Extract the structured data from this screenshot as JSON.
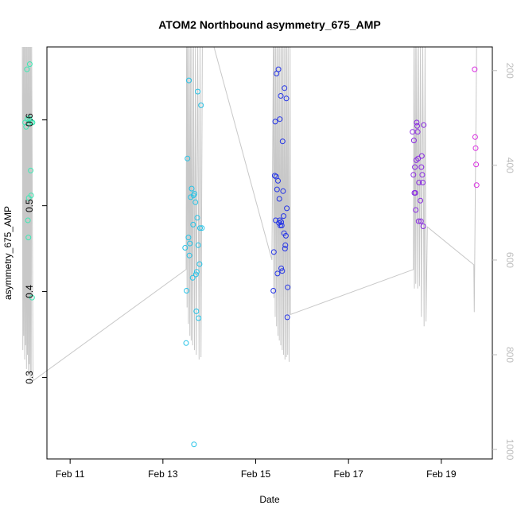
{
  "chart_data": {
    "type": "scatter",
    "title": "ATOM2 Northbound asymmetry_675_AMP",
    "xlabel": "Date",
    "ylabel": "asymmetry_675_AMP",
    "x_ticks": [
      "Feb 11",
      "Feb 13",
      "Feb 15",
      "Feb 17",
      "Feb 19"
    ],
    "xlim_days": [
      10.5,
      20.1
    ],
    "ylim": [
      0.205,
      0.685
    ],
    "y_ticks": [
      0.3,
      0.4,
      0.5,
      0.6
    ],
    "y2_ticks": [
      200,
      400,
      600,
      800,
      1000
    ],
    "y2lim": [
      1020,
      150
    ],
    "grid": false,
    "colors": {
      "group1": "#3ee8b4",
      "group2": "#25c2e6",
      "group3": "#2535e6",
      "group4": "#8a2be2",
      "group5": "#d92ee0",
      "depth_line": "#c8c8c8"
    },
    "points": [
      {
        "g": "group1",
        "x": 10.03,
        "y": 0.597
      },
      {
        "g": "group1",
        "x": 10.05,
        "y": 0.592
      },
      {
        "g": "group1",
        "x": 10.07,
        "y": 0.659
      },
      {
        "g": "group1",
        "x": 10.08,
        "y": 0.601
      },
      {
        "g": "group1",
        "x": 10.09,
        "y": 0.483
      },
      {
        "g": "group1",
        "x": 10.1,
        "y": 0.463
      },
      {
        "g": "group1",
        "x": 10.11,
        "y": 0.509
      },
      {
        "g": "group1",
        "x": 10.12,
        "y": 0.602
      },
      {
        "g": "group1",
        "x": 10.13,
        "y": 0.665
      },
      {
        "g": "group1",
        "x": 10.14,
        "y": 0.599
      },
      {
        "g": "group1",
        "x": 10.15,
        "y": 0.541
      },
      {
        "g": "group1",
        "x": 10.16,
        "y": 0.512
      },
      {
        "g": "group1",
        "x": 10.17,
        "y": 0.597
      },
      {
        "g": "group1",
        "x": 10.18,
        "y": 0.393
      },
      {
        "g": "group1",
        "x": 10.19,
        "y": 0.597
      },
      {
        "g": "group2",
        "x": 13.48,
        "y": 0.451
      },
      {
        "g": "group2",
        "x": 13.5,
        "y": 0.34
      },
      {
        "g": "group2",
        "x": 13.51,
        "y": 0.401
      },
      {
        "g": "group2",
        "x": 13.53,
        "y": 0.555
      },
      {
        "g": "group2",
        "x": 13.55,
        "y": 0.463
      },
      {
        "g": "group2",
        "x": 13.56,
        "y": 0.646
      },
      {
        "g": "group2",
        "x": 13.57,
        "y": 0.442
      },
      {
        "g": "group2",
        "x": 13.58,
        "y": 0.456
      },
      {
        "g": "group2",
        "x": 13.6,
        "y": 0.51
      },
      {
        "g": "group2",
        "x": 13.62,
        "y": 0.52
      },
      {
        "g": "group2",
        "x": 13.64,
        "y": 0.416
      },
      {
        "g": "group2",
        "x": 13.65,
        "y": 0.478
      },
      {
        "g": "group2",
        "x": 13.66,
        "y": 0.512
      },
      {
        "g": "group2",
        "x": 13.67,
        "y": 0.222
      },
      {
        "g": "group2",
        "x": 13.68,
        "y": 0.514
      },
      {
        "g": "group2",
        "x": 13.7,
        "y": 0.504
      },
      {
        "g": "group2",
        "x": 13.71,
        "y": 0.42
      },
      {
        "g": "group2",
        "x": 13.72,
        "y": 0.377
      },
      {
        "g": "group2",
        "x": 13.73,
        "y": 0.423
      },
      {
        "g": "group2",
        "x": 13.74,
        "y": 0.486
      },
      {
        "g": "group2",
        "x": 13.75,
        "y": 0.633
      },
      {
        "g": "group2",
        "x": 13.76,
        "y": 0.454
      },
      {
        "g": "group2",
        "x": 13.77,
        "y": 0.369
      },
      {
        "g": "group2",
        "x": 13.79,
        "y": 0.432
      },
      {
        "g": "group2",
        "x": 13.8,
        "y": 0.474
      },
      {
        "g": "group2",
        "x": 13.82,
        "y": 0.617
      },
      {
        "g": "group2",
        "x": 13.84,
        "y": 0.474
      },
      {
        "g": "group3",
        "x": 15.38,
        "y": 0.401
      },
      {
        "g": "group3",
        "x": 15.39,
        "y": 0.446
      },
      {
        "g": "group3",
        "x": 15.41,
        "y": 0.535
      },
      {
        "g": "group3",
        "x": 15.42,
        "y": 0.598
      },
      {
        "g": "group3",
        "x": 15.43,
        "y": 0.483
      },
      {
        "g": "group3",
        "x": 15.44,
        "y": 0.534
      },
      {
        "g": "group3",
        "x": 15.45,
        "y": 0.654
      },
      {
        "g": "group3",
        "x": 15.46,
        "y": 0.519
      },
      {
        "g": "group3",
        "x": 15.47,
        "y": 0.421
      },
      {
        "g": "group3",
        "x": 15.48,
        "y": 0.529
      },
      {
        "g": "group3",
        "x": 15.49,
        "y": 0.659
      },
      {
        "g": "group3",
        "x": 15.5,
        "y": 0.48
      },
      {
        "g": "group3",
        "x": 15.51,
        "y": 0.508
      },
      {
        "g": "group3",
        "x": 15.52,
        "y": 0.601
      },
      {
        "g": "group3",
        "x": 15.53,
        "y": 0.477
      },
      {
        "g": "group3",
        "x": 15.54,
        "y": 0.628
      },
      {
        "g": "group3",
        "x": 15.55,
        "y": 0.427
      },
      {
        "g": "group3",
        "x": 15.56,
        "y": 0.477
      },
      {
        "g": "group3",
        "x": 15.57,
        "y": 0.424
      },
      {
        "g": "group3",
        "x": 15.58,
        "y": 0.575
      },
      {
        "g": "group3",
        "x": 15.59,
        "y": 0.517
      },
      {
        "g": "group3",
        "x": 15.6,
        "y": 0.488
      },
      {
        "g": "group3",
        "x": 15.61,
        "y": 0.468
      },
      {
        "g": "group3",
        "x": 15.62,
        "y": 0.637
      },
      {
        "g": "group3",
        "x": 15.63,
        "y": 0.45
      },
      {
        "g": "group3",
        "x": 15.64,
        "y": 0.454
      },
      {
        "g": "group3",
        "x": 15.65,
        "y": 0.465
      },
      {
        "g": "group3",
        "x": 15.66,
        "y": 0.625
      },
      {
        "g": "group3",
        "x": 15.67,
        "y": 0.497
      },
      {
        "g": "group3",
        "x": 15.68,
        "y": 0.37
      },
      {
        "g": "group3",
        "x": 15.69,
        "y": 0.405
      },
      {
        "g": "group3",
        "x": 15.52,
        "y": 0.483
      },
      {
        "g": "group3",
        "x": 15.55,
        "y": 0.481
      },
      {
        "g": "group4",
        "x": 18.38,
        "y": 0.586
      },
      {
        "g": "group4",
        "x": 18.4,
        "y": 0.536
      },
      {
        "g": "group4",
        "x": 18.41,
        "y": 0.576
      },
      {
        "g": "group4",
        "x": 18.42,
        "y": 0.515
      },
      {
        "g": "group4",
        "x": 18.43,
        "y": 0.545
      },
      {
        "g": "group4",
        "x": 18.44,
        "y": 0.515
      },
      {
        "g": "group4",
        "x": 18.45,
        "y": 0.495
      },
      {
        "g": "group4",
        "x": 18.46,
        "y": 0.553
      },
      {
        "g": "group4",
        "x": 18.47,
        "y": 0.597
      },
      {
        "g": "group4",
        "x": 18.48,
        "y": 0.593
      },
      {
        "g": "group4",
        "x": 18.49,
        "y": 0.586
      },
      {
        "g": "group4",
        "x": 18.5,
        "y": 0.555
      },
      {
        "g": "group4",
        "x": 18.51,
        "y": 0.482
      },
      {
        "g": "group4",
        "x": 18.52,
        "y": 0.527
      },
      {
        "g": "group4",
        "x": 18.55,
        "y": 0.506
      },
      {
        "g": "group4",
        "x": 18.56,
        "y": 0.482
      },
      {
        "g": "group4",
        "x": 18.57,
        "y": 0.545
      },
      {
        "g": "group4",
        "x": 18.58,
        "y": 0.558
      },
      {
        "g": "group4",
        "x": 18.59,
        "y": 0.536
      },
      {
        "g": "group4",
        "x": 18.6,
        "y": 0.527
      },
      {
        "g": "group4",
        "x": 18.61,
        "y": 0.476
      },
      {
        "g": "group4",
        "x": 18.62,
        "y": 0.594
      },
      {
        "g": "group5",
        "x": 19.72,
        "y": 0.659
      },
      {
        "g": "group5",
        "x": 19.73,
        "y": 0.58
      },
      {
        "g": "group5",
        "x": 19.74,
        "y": 0.567
      },
      {
        "g": "group5",
        "x": 19.75,
        "y": 0.548
      },
      {
        "g": "group5",
        "x": 19.76,
        "y": 0.524
      }
    ],
    "depth_profile": [
      {
        "x": 9.97,
        "d": 140
      },
      {
        "x": 9.98,
        "d": 790
      },
      {
        "x": 9.99,
        "d": 140
      },
      {
        "x": 10.0,
        "d": 760
      },
      {
        "x": 10.01,
        "d": 140
      },
      {
        "x": 10.02,
        "d": 810
      },
      {
        "x": 10.03,
        "d": 140
      },
      {
        "x": 10.04,
        "d": 780
      },
      {
        "x": 10.05,
        "d": 140
      },
      {
        "x": 10.06,
        "d": 830
      },
      {
        "x": 10.07,
        "d": 140
      },
      {
        "x": 10.08,
        "d": 800
      },
      {
        "x": 10.09,
        "d": 140
      },
      {
        "x": 10.1,
        "d": 845
      },
      {
        "x": 10.11,
        "d": 140
      },
      {
        "x": 10.12,
        "d": 820
      },
      {
        "x": 10.13,
        "d": 140
      },
      {
        "x": 10.14,
        "d": 860
      },
      {
        "x": 10.15,
        "d": 140
      },
      {
        "x": 10.16,
        "d": 840
      },
      {
        "x": 10.17,
        "d": 140
      },
      {
        "x": 10.2,
        "d": 855
      },
      {
        "x": 13.5,
        "d": 620
      },
      {
        "x": 13.51,
        "d": 140
      },
      {
        "x": 13.52,
        "d": 700
      },
      {
        "x": 13.53,
        "d": 140
      },
      {
        "x": 13.55,
        "d": 735
      },
      {
        "x": 13.56,
        "d": 140
      },
      {
        "x": 13.58,
        "d": 760
      },
      {
        "x": 13.59,
        "d": 140
      },
      {
        "x": 13.61,
        "d": 770
      },
      {
        "x": 13.62,
        "d": 140
      },
      {
        "x": 13.64,
        "d": 780
      },
      {
        "x": 13.66,
        "d": 140
      },
      {
        "x": 13.68,
        "d": 790
      },
      {
        "x": 13.7,
        "d": 140
      },
      {
        "x": 13.72,
        "d": 800
      },
      {
        "x": 13.75,
        "d": 140
      },
      {
        "x": 13.78,
        "d": 810
      },
      {
        "x": 13.8,
        "d": 140
      },
      {
        "x": 13.82,
        "d": 805
      },
      {
        "x": 13.85,
        "d": 140
      },
      {
        "x": 14.1,
        "d": 140
      },
      {
        "x": 15.35,
        "d": 600
      },
      {
        "x": 15.38,
        "d": 140
      },
      {
        "x": 15.39,
        "d": 680
      },
      {
        "x": 15.4,
        "d": 140
      },
      {
        "x": 15.42,
        "d": 720
      },
      {
        "x": 15.43,
        "d": 140
      },
      {
        "x": 15.45,
        "d": 740
      },
      {
        "x": 15.46,
        "d": 140
      },
      {
        "x": 15.48,
        "d": 760
      },
      {
        "x": 15.49,
        "d": 140
      },
      {
        "x": 15.51,
        "d": 770
      },
      {
        "x": 15.52,
        "d": 140
      },
      {
        "x": 15.54,
        "d": 780
      },
      {
        "x": 15.55,
        "d": 140
      },
      {
        "x": 15.57,
        "d": 790
      },
      {
        "x": 15.58,
        "d": 140
      },
      {
        "x": 15.6,
        "d": 800
      },
      {
        "x": 15.61,
        "d": 140
      },
      {
        "x": 15.63,
        "d": 810
      },
      {
        "x": 15.64,
        "d": 140
      },
      {
        "x": 15.66,
        "d": 805
      },
      {
        "x": 15.67,
        "d": 140
      },
      {
        "x": 15.69,
        "d": 800
      },
      {
        "x": 15.7,
        "d": 140
      },
      {
        "x": 15.72,
        "d": 815
      },
      {
        "x": 15.74,
        "d": 140
      },
      {
        "x": 15.75,
        "d": 715
      },
      {
        "x": 18.4,
        "d": 620
      },
      {
        "x": 18.41,
        "d": 140
      },
      {
        "x": 18.42,
        "d": 660
      },
      {
        "x": 18.44,
        "d": 140
      },
      {
        "x": 18.45,
        "d": 650
      },
      {
        "x": 18.47,
        "d": 140
      },
      {
        "x": 18.49,
        "d": 660
      },
      {
        "x": 18.51,
        "d": 140
      },
      {
        "x": 18.53,
        "d": 655
      },
      {
        "x": 18.55,
        "d": 140
      },
      {
        "x": 18.57,
        "d": 720
      },
      {
        "x": 18.6,
        "d": 140
      },
      {
        "x": 18.63,
        "d": 740
      },
      {
        "x": 18.65,
        "d": 140
      },
      {
        "x": 18.67,
        "d": 730
      },
      {
        "x": 18.7,
        "d": 530
      },
      {
        "x": 19.7,
        "d": 610
      },
      {
        "x": 19.71,
        "d": 710
      },
      {
        "x": 19.72,
        "d": 610
      },
      {
        "x": 19.76,
        "d": 150
      }
    ]
  }
}
